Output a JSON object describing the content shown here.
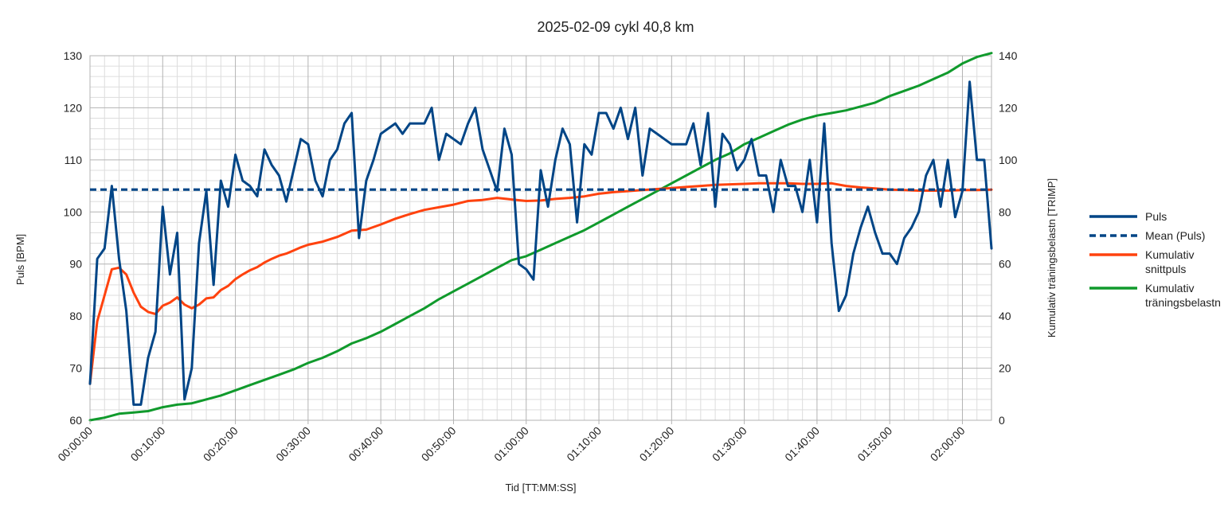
{
  "chart_data": {
    "type": "line",
    "title": "2025-02-09 cykl 40,8 km",
    "xlabel": "Tid [TT:MM:SS]",
    "ylabel_left": "Puls [BPM]",
    "ylabel_right": "Kumulativ träningsbelastn [TRIMP]",
    "x_unit": "minutes",
    "xlim": [
      0,
      124
    ],
    "ylim_left": [
      60,
      130
    ],
    "ylim_right": [
      0,
      140
    ],
    "x_ticks": [
      "00:00:00",
      "00:10:00",
      "00:20:00",
      "00:30:00",
      "00:40:00",
      "00:50:00",
      "01:00:00",
      "01:10:00",
      "01:20:00",
      "01:30:00",
      "01:40:00",
      "01:50:00",
      "02:00:00"
    ],
    "y_ticks_left": [
      60,
      70,
      80,
      90,
      100,
      110,
      120,
      130
    ],
    "y_ticks_right": [
      0,
      20,
      40,
      60,
      80,
      100,
      120,
      140
    ],
    "grid": true,
    "legend_position": "right",
    "series": [
      {
        "name": "Puls",
        "axis": "left",
        "color": "#004586",
        "dash": "solid",
        "x": [
          0,
          1,
          2,
          3,
          4,
          5,
          6,
          7,
          8,
          9,
          10,
          11,
          12,
          13,
          14,
          15,
          16,
          17,
          18,
          19,
          20,
          21,
          22,
          23,
          24,
          25,
          26,
          27,
          28,
          29,
          30,
          31,
          32,
          33,
          34,
          35,
          36,
          37,
          38,
          39,
          40,
          41,
          42,
          43,
          44,
          45,
          46,
          47,
          48,
          49,
          50,
          51,
          52,
          53,
          54,
          55,
          56,
          57,
          58,
          59,
          60,
          61,
          62,
          63,
          64,
          65,
          66,
          67,
          68,
          69,
          70,
          71,
          72,
          73,
          74,
          75,
          76,
          77,
          78,
          79,
          80,
          81,
          82,
          83,
          84,
          85,
          86,
          87,
          88,
          89,
          90,
          91,
          92,
          93,
          94,
          95,
          96,
          97,
          98,
          99,
          100,
          101,
          102,
          103,
          104,
          105,
          106,
          107,
          108,
          109,
          110,
          111,
          112,
          113,
          114,
          115,
          116,
          117,
          118,
          119,
          120,
          121,
          122,
          123,
          124
        ],
        "values": [
          67,
          91,
          93,
          105,
          91,
          81,
          63,
          63,
          72,
          77,
          101,
          88,
          96,
          64,
          70,
          94,
          104,
          86,
          106,
          101,
          111,
          106,
          105,
          103,
          112,
          109,
          107,
          102,
          108,
          114,
          113,
          106,
          103,
          110,
          112,
          117,
          119,
          95,
          106,
          110,
          115,
          116,
          117,
          115,
          117,
          117,
          117,
          120,
          110,
          115,
          114,
          113,
          117,
          120,
          112,
          108,
          104,
          116,
          111,
          90,
          89,
          87,
          108,
          101,
          110,
          116,
          113,
          98,
          113,
          111,
          119,
          119,
          116,
          120,
          114,
          120,
          107,
          116,
          115,
          114,
          113,
          113,
          113,
          117,
          109,
          119,
          101,
          115,
          113,
          108,
          110,
          114,
          107,
          107,
          100,
          110,
          105,
          105,
          100,
          110,
          98,
          117,
          94,
          81,
          84,
          92,
          97,
          101,
          96,
          92,
          92,
          90,
          95,
          97,
          100,
          107,
          110,
          101,
          110,
          99,
          104,
          125,
          110,
          110,
          93
        ]
      },
      {
        "name": "Mean (Puls)",
        "axis": "left",
        "color": "#004586",
        "dash": "dashed",
        "x": [
          0,
          124
        ],
        "values": [
          104.3,
          104.3
        ]
      },
      {
        "name": "Kumulativ snittpuls",
        "axis": "left",
        "color": "#ff420e",
        "dash": "solid",
        "x": [
          0,
          1,
          2,
          3,
          4,
          5,
          6,
          7,
          8,
          9,
          10,
          11,
          12,
          13,
          14,
          15,
          16,
          17,
          18,
          19,
          20,
          21,
          22,
          23,
          24,
          25,
          26,
          27,
          28,
          29,
          30,
          32,
          34,
          36,
          38,
          40,
          42,
          44,
          46,
          48,
          50,
          52,
          54,
          56,
          58,
          60,
          62,
          64,
          66,
          68,
          70,
          72,
          74,
          76,
          78,
          80,
          82,
          84,
          86,
          88,
          90,
          92,
          94,
          96,
          98,
          100,
          102,
          104,
          106,
          108,
          110,
          112,
          114,
          116,
          118,
          120,
          122,
          124
        ],
        "values": [
          67,
          79,
          84,
          89,
          89.3,
          88,
          84.5,
          81.8,
          80.8,
          80.4,
          82,
          82.6,
          83.6,
          82.2,
          81.5,
          82.2,
          83.4,
          83.6,
          85,
          85.8,
          87.1,
          88,
          88.8,
          89.4,
          90.3,
          91,
          91.6,
          92,
          92.6,
          93.2,
          93.7,
          94.3,
          95.2,
          96.4,
          96.6,
          97.6,
          98.7,
          99.6,
          100.4,
          100.9,
          101.4,
          102.1,
          102.3,
          102.7,
          102.4,
          102.1,
          102.2,
          102.5,
          102.7,
          103,
          103.5,
          103.8,
          104,
          104.2,
          104.4,
          104.6,
          104.8,
          105,
          105.2,
          105.3,
          105.4,
          105.5,
          105.5,
          105.5,
          105.4,
          105.4,
          105.5,
          105,
          104.7,
          104.5,
          104.3,
          104.2,
          104.1,
          104.1,
          104.1,
          104.2,
          104.2,
          104.3
        ]
      },
      {
        "name": "Kumulativ träningsbelastn",
        "axis": "right",
        "color": "#109a2c",
        "dash": "solid",
        "x": [
          0,
          2,
          4,
          6,
          8,
          10,
          12,
          14,
          16,
          18,
          20,
          22,
          24,
          26,
          28,
          30,
          32,
          34,
          36,
          38,
          40,
          42,
          44,
          46,
          48,
          50,
          52,
          54,
          56,
          58,
          60,
          62,
          64,
          66,
          68,
          70,
          72,
          74,
          76,
          78,
          80,
          82,
          84,
          86,
          88,
          90,
          92,
          94,
          96,
          98,
          100,
          102,
          104,
          106,
          108,
          110,
          112,
          114,
          116,
          118,
          120,
          122,
          124
        ],
        "values": [
          0,
          1,
          2.5,
          3,
          3.5,
          5,
          6,
          6.5,
          8,
          9.5,
          11.5,
          13.5,
          15.5,
          17.5,
          19.5,
          22,
          24,
          26.5,
          29.5,
          31.5,
          34,
          37,
          40,
          43,
          46.5,
          49.5,
          52.5,
          55.5,
          58.5,
          61.5,
          63,
          65.5,
          68,
          70.5,
          73,
          76,
          79,
          82,
          85,
          88,
          91,
          94,
          97,
          100,
          102.5,
          106,
          108.5,
          111,
          113.5,
          115.5,
          117,
          118,
          119,
          120.5,
          122,
          124.5,
          126.5,
          128.5,
          131,
          133.5,
          137,
          139.5,
          141
        ]
      }
    ]
  }
}
